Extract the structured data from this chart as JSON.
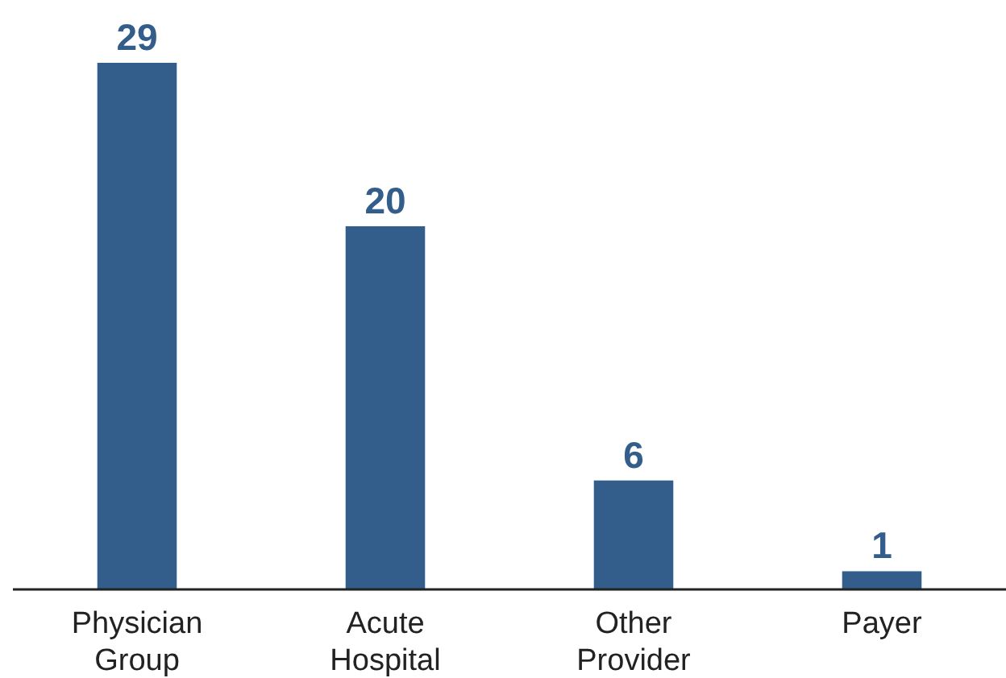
{
  "chart_data": {
    "type": "bar",
    "categories": [
      "Physician Group",
      "Acute Hospital",
      "Other Provider",
      "Payer"
    ],
    "values": [
      29,
      20,
      6,
      1
    ],
    "color": "#335d8a",
    "data_labels": true
  }
}
